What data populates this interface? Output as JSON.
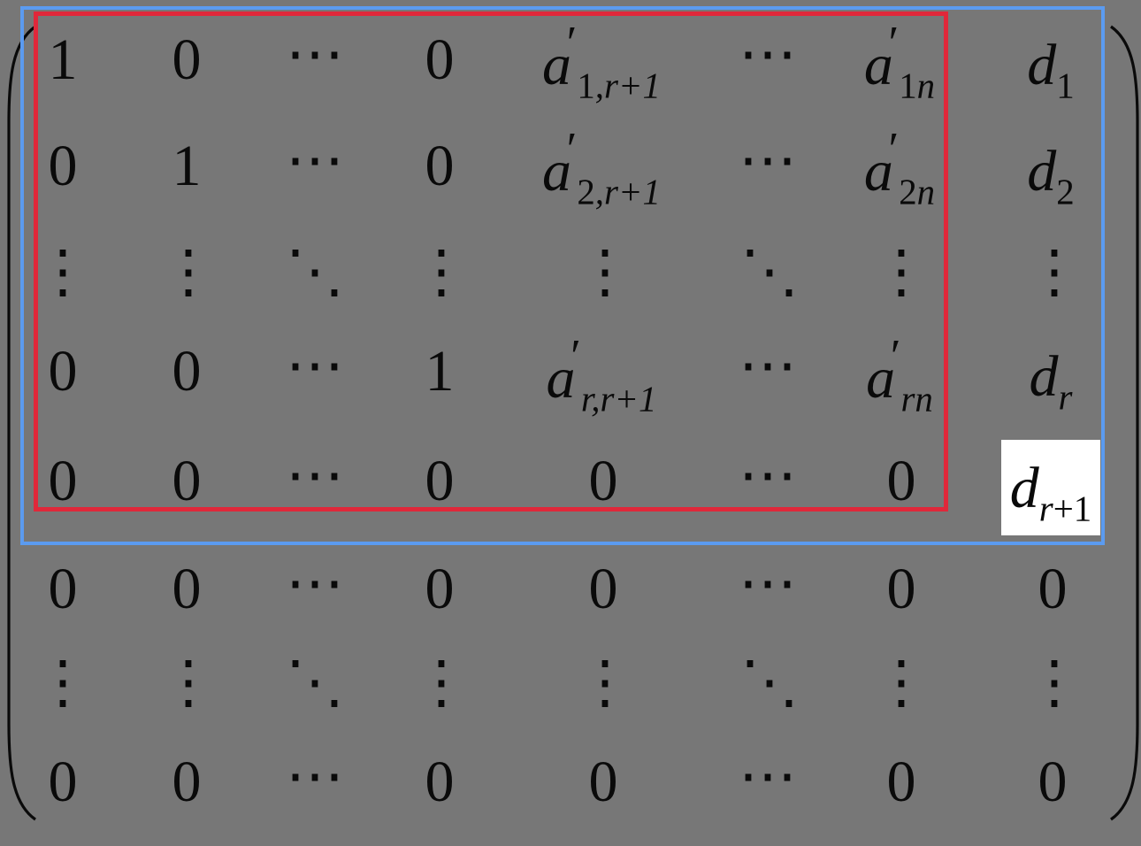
{
  "matrix": {
    "rows": [
      [
        "1",
        "0",
        "⋯",
        "0",
        "a′1,r+1",
        "⋯",
        "a′1n",
        "d1"
      ],
      [
        "0",
        "1",
        "⋯",
        "0",
        "a′2,r+1",
        "⋯",
        "a′2n",
        "d2"
      ],
      [
        "⋮",
        "⋮",
        "⋱",
        "⋮",
        "⋮",
        "⋱",
        "⋮",
        "⋮"
      ],
      [
        "0",
        "0",
        "⋯",
        "1",
        "a′r,r+1",
        "⋯",
        "a′rn",
        "dr"
      ],
      [
        "0",
        "0",
        "⋯",
        "0",
        "0",
        "⋯",
        "0",
        "dr+1"
      ],
      [
        "0",
        "0",
        "⋯",
        "0",
        "0",
        "⋯",
        "0",
        "0"
      ],
      [
        "⋮",
        "⋮",
        "⋱",
        "⋮",
        "⋮",
        "⋱",
        "⋮",
        "⋮"
      ],
      [
        "0",
        "0",
        "⋯",
        "0",
        "0",
        "⋯",
        "0",
        "0"
      ]
    ],
    "entries": {
      "a1r1": {
        "base": "a",
        "prime": "′",
        "sub_num": "1",
        "sub_rest": ",r+1"
      },
      "a1n": {
        "base": "a",
        "prime": "′",
        "sub_num": "1",
        "sub_rest": "n"
      },
      "a2r1": {
        "base": "a",
        "prime": "′",
        "sub_num": "2",
        "sub_rest": ",r+1"
      },
      "a2n": {
        "base": "a",
        "prime": "′",
        "sub_num": "2",
        "sub_rest": "n"
      },
      "arr1": {
        "base": "a",
        "prime": "′",
        "sub_num": "r",
        "sub_rest": ",r+1"
      },
      "arn": {
        "base": "a",
        "prime": "′",
        "sub_num": "r",
        "sub_rest": "n"
      },
      "d1": {
        "base": "d",
        "sub": "1"
      },
      "d2": {
        "base": "d",
        "sub": "2"
      },
      "dr": {
        "base": "d",
        "sub": "r"
      },
      "dr1": {
        "base": "d",
        "sub_var": "r",
        "sub_rest": "+1"
      }
    }
  },
  "highlights": {
    "outer_box_color": "#5b9bf0",
    "inner_box_color": "#e0283a",
    "highlighted_cell_background": "#ffffff",
    "page_background": "#777777"
  }
}
